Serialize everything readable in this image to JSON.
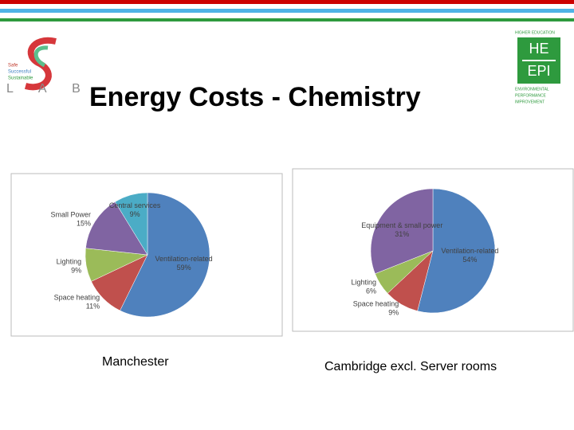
{
  "slide_title": "Energy Costs - Chemistry",
  "logos": {
    "left_text": [
      "Safe",
      "Successful",
      "Sustainable"
    ],
    "left_lab": "L A B",
    "right_top": "HIGHER EDUCATION",
    "right_he": "HE",
    "right_epi": "EPI",
    "right_bottom": [
      "ENVIRONMENTAL",
      "PERFORMANCE",
      "IMPROVEMENT"
    ]
  },
  "chart_data": [
    {
      "type": "pie",
      "caption": "Manchester",
      "categories": [
        "Ventilation-related",
        "Space heating",
        "Lighting",
        "Small Power",
        "Central services"
      ],
      "values": [
        59,
        11,
        9,
        15,
        9
      ],
      "value_labels": [
        "59%",
        "11%",
        "9%",
        "15%",
        "9%"
      ],
      "colors": [
        "#4f81bd",
        "#c0504d",
        "#9bbb59",
        "#8064a2",
        "#4bacc6"
      ]
    },
    {
      "type": "pie",
      "caption": "Cambridge excl. Server rooms",
      "categories": [
        "Ventilation-related",
        "Space heating",
        "Lighting",
        "Equipment & small power"
      ],
      "values": [
        54,
        9,
        6,
        31
      ],
      "value_labels": [
        "54%",
        "9%",
        "6%",
        "31%"
      ],
      "colors": [
        "#4f81bd",
        "#c0504d",
        "#9bbb59",
        "#8064a2"
      ]
    }
  ]
}
